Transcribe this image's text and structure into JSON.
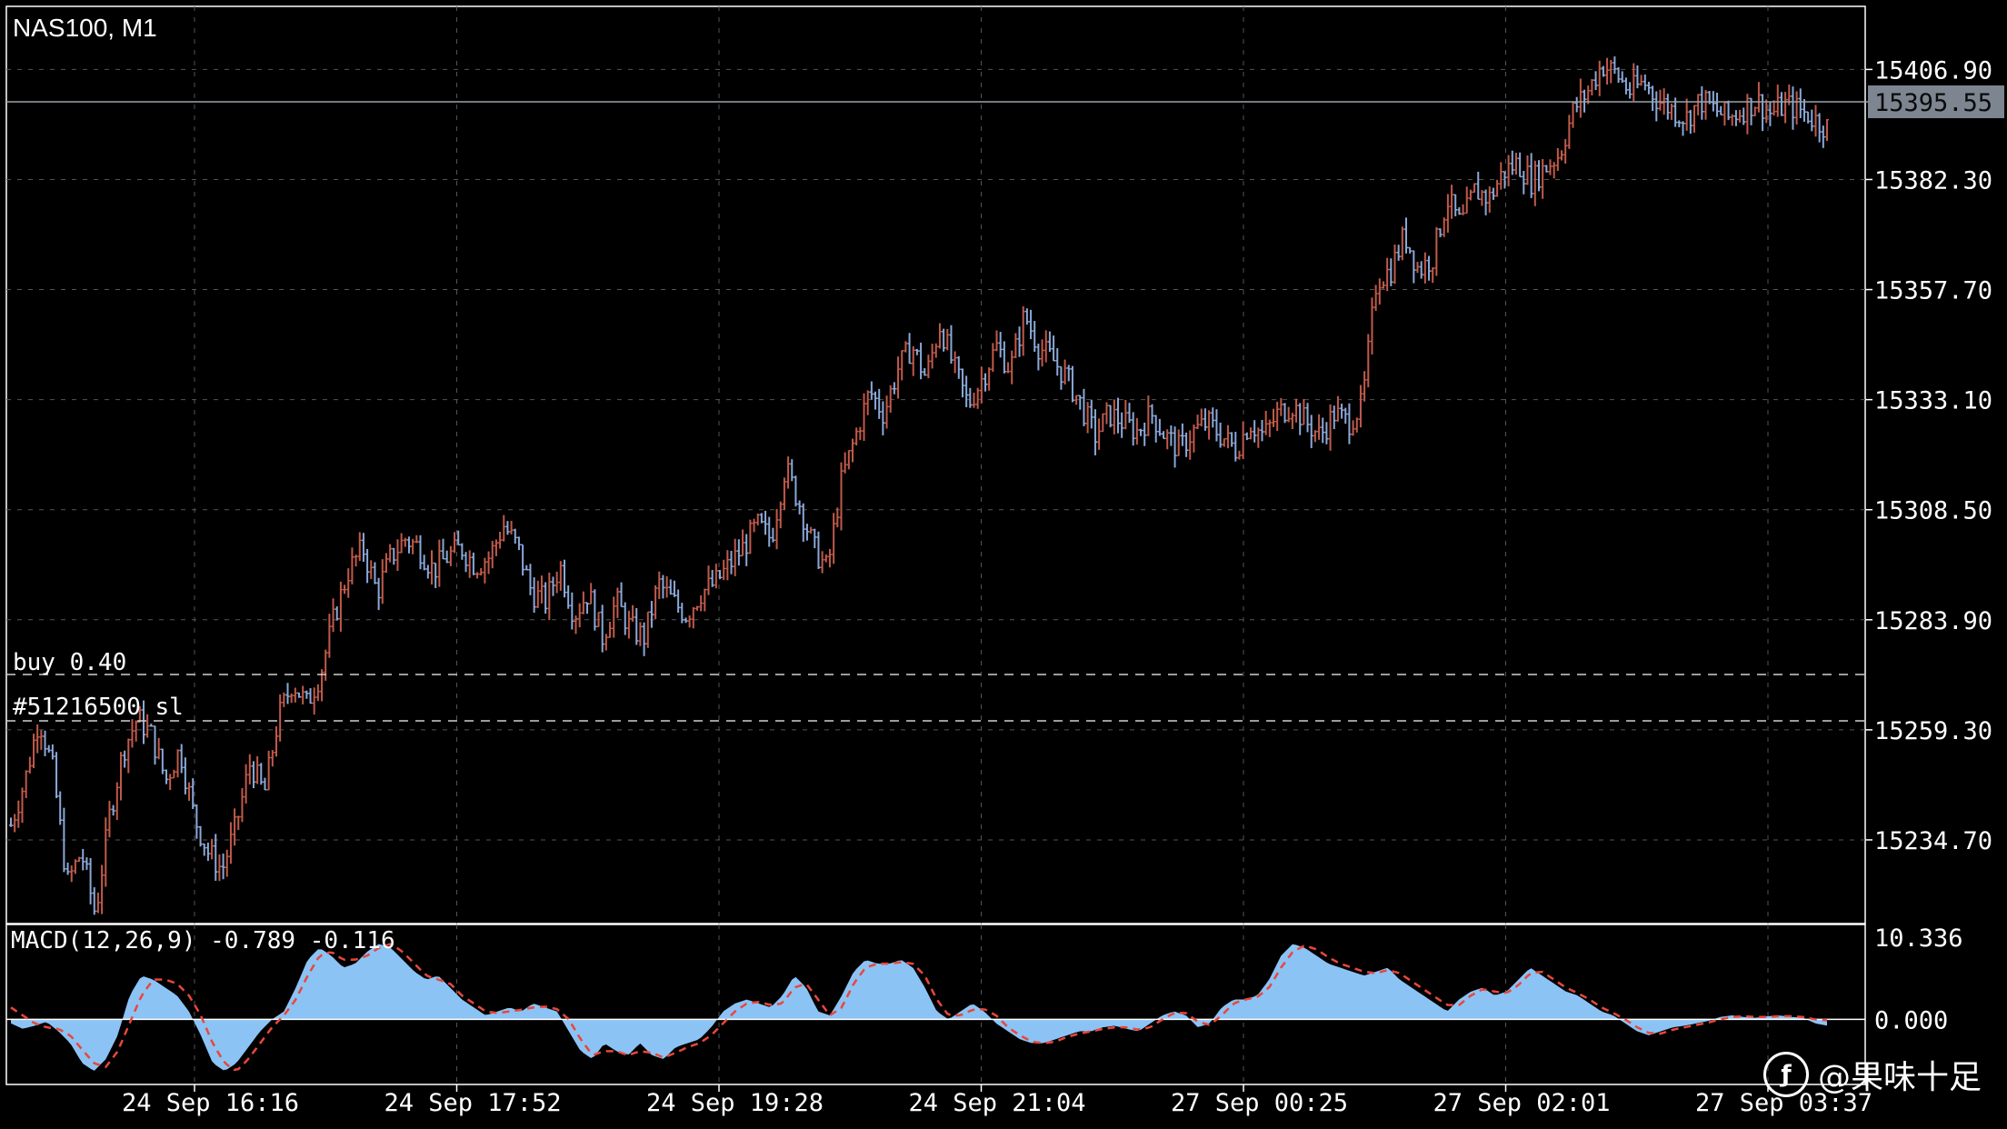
{
  "symbol_label": "NAS100, M1",
  "current_price": "15395.55",
  "orders": {
    "buy_label": "buy 0.40",
    "buy_price": 15266.0,
    "sl_label": "#51216500 sl",
    "sl_price": 15255.5
  },
  "macd": {
    "label": "MACD(12,26,9) -0.789 -0.116",
    "y_ticks": [
      "10.336",
      "0.000"
    ],
    "ylim": [
      -7.5,
      10.336
    ],
    "histogram_color": "#8cc3f5",
    "signal_color": "#e8473b",
    "histogram": [
      -0.5,
      -1.2,
      -0.8,
      -0.3,
      -1.5,
      -3,
      -5.5,
      -6.5,
      -5,
      -2,
      3,
      5.5,
      5,
      4,
      3,
      1,
      -2,
      -5.5,
      -6.5,
      -5.5,
      -3.5,
      -1.5,
      0,
      1,
      4,
      7.5,
      9,
      8,
      6.5,
      7,
      8.5,
      9.5,
      9,
      7.5,
      6,
      5,
      5.5,
      4,
      2.5,
      1.5,
      0.5,
      1,
      1.5,
      1,
      2,
      1.5,
      1,
      -1.5,
      -4,
      -5,
      -3,
      -4,
      -4.5,
      -3,
      -4.5,
      -5,
      -3.5,
      -3,
      -2.5,
      -1,
      1,
      2,
      2.5,
      2,
      1.5,
      3,
      5.5,
      4,
      1,
      0.5,
      3,
      6,
      7.5,
      7,
      7,
      7.5,
      6.5,
      4,
      1,
      0,
      1,
      2,
      1,
      -0.5,
      -1.5,
      -2.5,
      -3,
      -3,
      -2.5,
      -2,
      -1.5,
      -1.5,
      -1,
      -0.8,
      -1.2,
      -1.5,
      -0.5,
      0.5,
      1,
      0.5,
      -1,
      -0.5,
      1.5,
      2.5,
      2.5,
      3,
      5,
      8,
      9.5,
      9,
      8,
      7,
      6.5,
      6,
      5.5,
      6,
      6.5,
      5,
      4,
      3,
      2,
      1,
      2.5,
      3.5,
      4,
      3,
      3.5,
      5,
      6.5,
      5.5,
      4.5,
      3.5,
      3,
      2,
      1,
      0.5,
      -0.5,
      -1.5,
      -2,
      -1.5,
      -1,
      -0.8,
      -0.5,
      -0.2,
      0.3,
      0.5,
      0.3,
      0.2,
      0.4,
      0.5,
      0.3,
      0.2,
      -0.5,
      -0.789
    ],
    "signal": [
      1.5,
      0.5,
      -0.5,
      -1,
      -1.2,
      -2,
      -3.8,
      -5.5,
      -6,
      -4,
      -0.5,
      3,
      5,
      5,
      4.5,
      3,
      0.5,
      -3,
      -5.5,
      -6.5,
      -5,
      -3,
      -1,
      0.5,
      2.5,
      5.5,
      8,
      8.5,
      7.5,
      7.5,
      8,
      9,
      9.5,
      8.5,
      7,
      5.5,
      5,
      4.5,
      3,
      2,
      1,
      0.8,
      1,
      1.2,
      1.5,
      1.6,
      1.3,
      0,
      -2.5,
      -4.5,
      -4,
      -4,
      -4.5,
      -4,
      -4.2,
      -4.8,
      -4.2,
      -3.5,
      -3,
      -2,
      -0.5,
      1,
      2,
      2.2,
      1.8,
      2,
      4,
      4.5,
      2.5,
      0.5,
      1.5,
      4.5,
      6.5,
      7,
      7,
      7.2,
      7,
      5.5,
      2.5,
      0.5,
      0.5,
      1.2,
      1.3,
      0.5,
      -1,
      -2,
      -2.8,
      -3,
      -2.8,
      -2.2,
      -1.8,
      -1.5,
      -1.2,
      -1,
      -1,
      -1.3,
      -1,
      0,
      0.8,
      0.8,
      -0.3,
      -0.7,
      0.5,
      2,
      2.5,
      2.8,
      4,
      6.5,
      8.5,
      9.3,
      8.8,
      7.8,
      7,
      6.5,
      6,
      5.8,
      6.2,
      5.8,
      4.8,
      3.8,
      2.8,
      1.8,
      1.8,
      3,
      3.8,
      3.5,
      3.3,
      4.3,
      5.8,
      6,
      5,
      4,
      3.3,
      2.5,
      1.5,
      0.8,
      0,
      -1,
      -1.7,
      -1.8,
      -1.3,
      -1,
      -0.7,
      -0.4,
      0,
      0.3,
      0.4,
      0.3,
      0.3,
      0.4,
      0.4,
      0.3,
      0,
      -0.116
    ]
  },
  "price_axis": {
    "ticks": [
      "15406.90",
      "15382.30",
      "15357.70",
      "15333.10",
      "15308.50",
      "15283.90",
      "15259.30",
      "15234.70"
    ],
    "ylim": [
      15216.0,
      15421.0
    ]
  },
  "time_axis": {
    "ticks": [
      "24 Sep 16:16",
      "24 Sep 17:52",
      "24 Sep 19:28",
      "24 Sep 21:04",
      "27 Sep 00:25",
      "27 Sep 02:01",
      "27 Sep 03:37"
    ]
  },
  "chart_data": {
    "type": "bar",
    "title": "NAS100, M1",
    "up_color": "#c05a4a",
    "down_color": "#8aa8d8",
    "ylim": [
      15216.0,
      15421.0
    ],
    "close_path": [
      15238,
      15248,
      15262,
      15250,
      15225,
      15232,
      15218,
      15240,
      15255,
      15262,
      15258,
      15248,
      15255,
      15240,
      15232,
      15228,
      15238,
      15252,
      15245,
      15262,
      15270,
      15265,
      15272,
      15285,
      15295,
      15300,
      15290,
      15298,
      15302,
      15300,
      15295,
      15298,
      15300,
      15296,
      15298,
      15305,
      15300,
      15290,
      15288,
      15296,
      15285,
      15290,
      15280,
      15288,
      15282,
      15280,
      15292,
      15288,
      15285,
      15290,
      15292,
      15296,
      15300,
      15305,
      15302,
      15318,
      15310,
      15300,
      15295,
      15315,
      15325,
      15335,
      15330,
      15340,
      15345,
      15338,
      15350,
      15340,
      15332,
      15338,
      15345,
      15340,
      15352,
      15345,
      15342,
      15338,
      15332,
      15325,
      15330,
      15328,
      15326,
      15330,
      15325,
      15322,
      15326,
      15328,
      15325,
      15322,
      15328,
      15325,
      15330,
      15332,
      15328,
      15325,
      15330,
      15328,
      15332,
      15360,
      15362,
      15370,
      15362,
      15365,
      15378,
      15372,
      15380,
      15378,
      15384,
      15386,
      15382,
      15385,
      15388,
      15398,
      15402,
      15408,
      15406,
      15402,
      15404,
      15400,
      15398,
      15396,
      15400,
      15398,
      15396,
      15398,
      15400,
      15397,
      15399,
      15398,
      15396,
      15394
    ],
    "current_price": 15395.55
  }
}
